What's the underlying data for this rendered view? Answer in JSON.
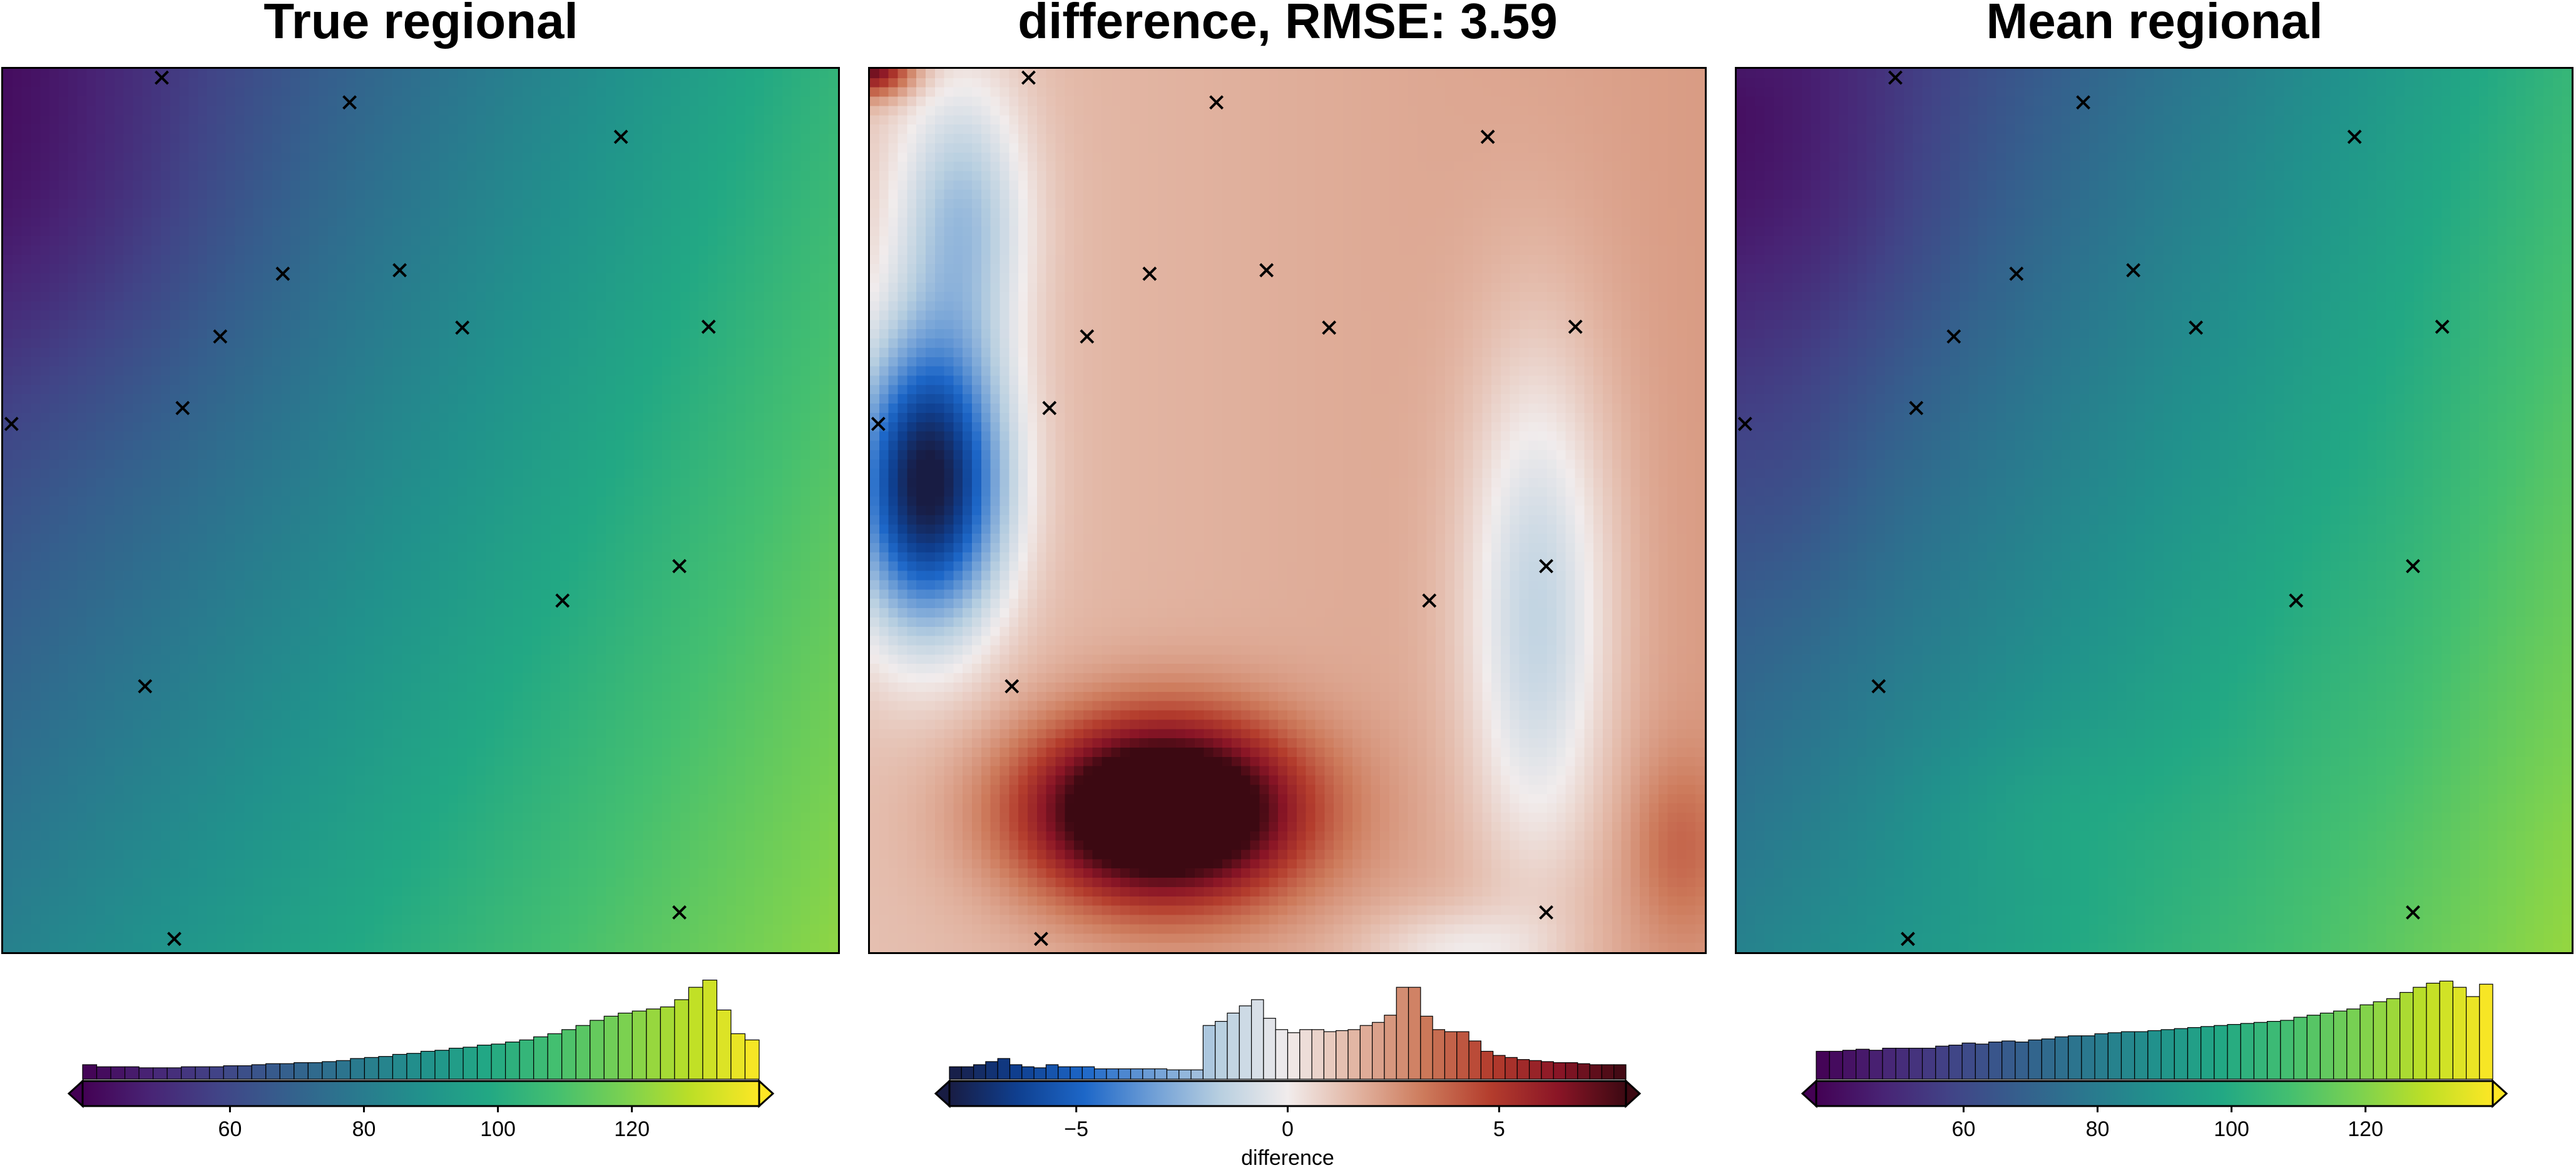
{
  "panels": [
    {
      "title": "True regional",
      "colormap": "viridis",
      "vmin": 38,
      "vmax": 139,
      "cbar_ticks": [
        60,
        80,
        100,
        120
      ],
      "cbar_label": ""
    },
    {
      "title": "difference, RMSE: 3.59",
      "colormap": "balance",
      "vmin": -8,
      "vmax": 8,
      "cbar_ticks": [
        -5,
        0,
        5
      ],
      "cbar_tick_labels": [
        "−5",
        "0",
        "5"
      ],
      "cbar_label": "difference"
    },
    {
      "title": "Mean regional",
      "colormap": "viridis",
      "vmin": 38,
      "vmax": 139,
      "cbar_ticks": [
        60,
        80,
        100,
        120
      ],
      "cbar_label": ""
    }
  ],
  "chart_data": [
    {
      "type": "heatmap",
      "title": "True regional",
      "xlim": [
        0,
        100
      ],
      "ylim": [
        0,
        100
      ],
      "colorbar": {
        "range": [
          38,
          139
        ],
        "ticks": [
          60,
          80,
          100,
          120
        ]
      },
      "histogram": [
        0.14,
        0.12,
        0.12,
        0.12,
        0.11,
        0.11,
        0.11,
        0.12,
        0.12,
        0.12,
        0.13,
        0.13,
        0.14,
        0.15,
        0.15,
        0.16,
        0.16,
        0.17,
        0.18,
        0.2,
        0.21,
        0.22,
        0.24,
        0.25,
        0.27,
        0.28,
        0.3,
        0.31,
        0.33,
        0.34,
        0.36,
        0.38,
        0.41,
        0.44,
        0.48,
        0.52,
        0.57,
        0.61,
        0.64,
        0.66,
        0.68,
        0.7,
        0.77,
        0.89,
        0.96,
        0.67,
        0.44,
        0.38
      ],
      "control_points": [
        [
          19,
          99
        ],
        [
          41.5,
          96.2
        ],
        [
          74,
          92.3
        ],
        [
          33.5,
          76.8
        ],
        [
          47.5,
          77.2
        ],
        [
          55,
          70.7
        ],
        [
          26,
          69.7
        ],
        [
          84.5,
          70.8
        ],
        [
          21.5,
          61.6
        ],
        [
          1,
          59.8
        ],
        [
          81,
          43.7
        ],
        [
          67,
          39.8
        ],
        [
          17,
          30.1
        ],
        [
          81,
          4.5
        ],
        [
          20.5,
          1.5
        ]
      ]
    },
    {
      "type": "heatmap",
      "title": "difference, RMSE: 3.59",
      "xlim": [
        0,
        100
      ],
      "ylim": [
        0,
        100
      ],
      "colorbar": {
        "range": [
          -8,
          8
        ],
        "ticks": [
          -5,
          0,
          5
        ],
        "label": "difference"
      },
      "histogram": [
        0.12,
        0.12,
        0.14,
        0.17,
        0.2,
        0.14,
        0.12,
        0.11,
        0.14,
        0.12,
        0.12,
        0.12,
        0.1,
        0.1,
        0.1,
        0.1,
        0.1,
        0.1,
        0.09,
        0.09,
        0.09,
        0.52,
        0.56,
        0.64,
        0.71,
        0.77,
        0.59,
        0.48,
        0.45,
        0.48,
        0.48,
        0.46,
        0.47,
        0.48,
        0.52,
        0.55,
        0.62,
        0.89,
        0.89,
        0.61,
        0.48,
        0.46,
        0.46,
        0.37,
        0.27,
        0.23,
        0.21,
        0.19,
        0.18,
        0.17,
        0.16,
        0.16,
        0.15,
        0.14,
        0.14,
        0.14
      ]
    },
    {
      "type": "heatmap",
      "title": "Mean regional",
      "xlim": [
        0,
        100
      ],
      "ylim": [
        0,
        100
      ],
      "colorbar": {
        "range": [
          38,
          139
        ],
        "ticks": [
          60,
          80,
          100,
          120
        ]
      },
      "histogram": [
        0.27,
        0.27,
        0.28,
        0.29,
        0.28,
        0.3,
        0.3,
        0.3,
        0.3,
        0.32,
        0.33,
        0.35,
        0.34,
        0.36,
        0.37,
        0.36,
        0.38,
        0.39,
        0.41,
        0.42,
        0.42,
        0.44,
        0.45,
        0.46,
        0.46,
        0.47,
        0.48,
        0.49,
        0.5,
        0.51,
        0.52,
        0.53,
        0.54,
        0.55,
        0.56,
        0.57,
        0.6,
        0.62,
        0.64,
        0.66,
        0.68,
        0.72,
        0.75,
        0.78,
        0.84,
        0.89,
        0.93,
        0.95,
        0.89,
        0.8,
        0.92
      ]
    }
  ]
}
